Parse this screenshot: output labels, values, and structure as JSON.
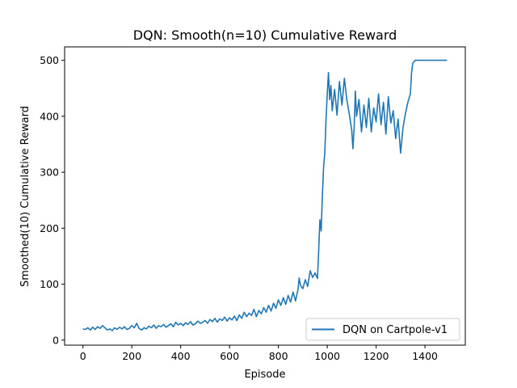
{
  "chart_data": {
    "type": "line",
    "title": "DQN: Smooth(n=10) Cumulative Reward",
    "xlabel": "Episode",
    "ylabel": "Smoothed(10) Cumulative Reward",
    "xlim": [
      -75,
      1565
    ],
    "ylim": [
      -9,
      524
    ],
    "xticks": [
      0,
      200,
      400,
      600,
      800,
      1000,
      1200,
      1400
    ],
    "yticks": [
      0,
      100,
      200,
      300,
      400,
      500
    ],
    "grid": false,
    "legend_position": "lower-right",
    "series": [
      {
        "name": "DQN on Cartpole-v1",
        "color": "#1f77b4",
        "points": [
          [
            0,
            20
          ],
          [
            10,
            19
          ],
          [
            20,
            22
          ],
          [
            30,
            18
          ],
          [
            40,
            23
          ],
          [
            50,
            19
          ],
          [
            60,
            24
          ],
          [
            70,
            21
          ],
          [
            80,
            26
          ],
          [
            90,
            22
          ],
          [
            100,
            18
          ],
          [
            110,
            20
          ],
          [
            120,
            17
          ],
          [
            130,
            22
          ],
          [
            140,
            19
          ],
          [
            150,
            23
          ],
          [
            160,
            20
          ],
          [
            170,
            24
          ],
          [
            180,
            19
          ],
          [
            190,
            21
          ],
          [
            200,
            26
          ],
          [
            210,
            22
          ],
          [
            220,
            30
          ],
          [
            230,
            21
          ],
          [
            240,
            18
          ],
          [
            250,
            22
          ],
          [
            260,
            20
          ],
          [
            270,
            25
          ],
          [
            280,
            22
          ],
          [
            290,
            27
          ],
          [
            300,
            21
          ],
          [
            310,
            26
          ],
          [
            320,
            24
          ],
          [
            330,
            28
          ],
          [
            340,
            23
          ],
          [
            350,
            26
          ],
          [
            360,
            29
          ],
          [
            370,
            24
          ],
          [
            380,
            32
          ],
          [
            390,
            27
          ],
          [
            400,
            30
          ],
          [
            410,
            26
          ],
          [
            420,
            31
          ],
          [
            430,
            28
          ],
          [
            440,
            33
          ],
          [
            450,
            27
          ],
          [
            460,
            29
          ],
          [
            470,
            34
          ],
          [
            480,
            30
          ],
          [
            490,
            32
          ],
          [
            500,
            35
          ],
          [
            510,
            30
          ],
          [
            520,
            37
          ],
          [
            530,
            33
          ],
          [
            540,
            39
          ],
          [
            550,
            32
          ],
          [
            560,
            38
          ],
          [
            570,
            35
          ],
          [
            580,
            41
          ],
          [
            590,
            34
          ],
          [
            600,
            40
          ],
          [
            610,
            36
          ],
          [
            620,
            43
          ],
          [
            630,
            35
          ],
          [
            640,
            45
          ],
          [
            650,
            39
          ],
          [
            660,
            50
          ],
          [
            670,
            42
          ],
          [
            680,
            48
          ],
          [
            690,
            44
          ],
          [
            700,
            55
          ],
          [
            710,
            42
          ],
          [
            720,
            53
          ],
          [
            730,
            47
          ],
          [
            740,
            58
          ],
          [
            750,
            50
          ],
          [
            760,
            62
          ],
          [
            770,
            52
          ],
          [
            780,
            66
          ],
          [
            790,
            57
          ],
          [
            800,
            72
          ],
          [
            810,
            62
          ],
          [
            820,
            76
          ],
          [
            830,
            64
          ],
          [
            840,
            80
          ],
          [
            850,
            68
          ],
          [
            860,
            86
          ],
          [
            870,
            70
          ],
          [
            880,
            90
          ],
          [
            885,
            111
          ],
          [
            890,
            98
          ],
          [
            900,
            92
          ],
          [
            910,
            108
          ],
          [
            920,
            96
          ],
          [
            930,
            124
          ],
          [
            940,
            112
          ],
          [
            950,
            120
          ],
          [
            960,
            110
          ],
          [
            965,
            160
          ],
          [
            970,
            215
          ],
          [
            975,
            195
          ],
          [
            980,
            260
          ],
          [
            985,
            310
          ],
          [
            990,
            335
          ],
          [
            995,
            395
          ],
          [
            1000,
            440
          ],
          [
            1005,
            478
          ],
          [
            1010,
            430
          ],
          [
            1015,
            455
          ],
          [
            1020,
            410
          ],
          [
            1030,
            448
          ],
          [
            1040,
            402
          ],
          [
            1050,
            462
          ],
          [
            1060,
            420
          ],
          [
            1070,
            468
          ],
          [
            1080,
            430
          ],
          [
            1090,
            405
          ],
          [
            1100,
            375
          ],
          [
            1105,
            342
          ],
          [
            1110,
            380
          ],
          [
            1115,
            445
          ],
          [
            1120,
            400
          ],
          [
            1130,
            430
          ],
          [
            1140,
            372
          ],
          [
            1150,
            420
          ],
          [
            1160,
            380
          ],
          [
            1170,
            432
          ],
          [
            1180,
            372
          ],
          [
            1190,
            415
          ],
          [
            1200,
            390
          ],
          [
            1210,
            440
          ],
          [
            1220,
            385
          ],
          [
            1230,
            425
          ],
          [
            1240,
            368
          ],
          [
            1250,
            435
          ],
          [
            1260,
            388
          ],
          [
            1270,
            410
          ],
          [
            1280,
            360
          ],
          [
            1290,
            395
          ],
          [
            1300,
            334
          ],
          [
            1310,
            380
          ],
          [
            1320,
            405
          ],
          [
            1330,
            425
          ],
          [
            1340,
            440
          ],
          [
            1345,
            478
          ],
          [
            1350,
            495
          ],
          [
            1360,
            500
          ],
          [
            1380,
            500
          ],
          [
            1400,
            500
          ],
          [
            1450,
            500
          ],
          [
            1490,
            500
          ]
        ]
      }
    ]
  }
}
